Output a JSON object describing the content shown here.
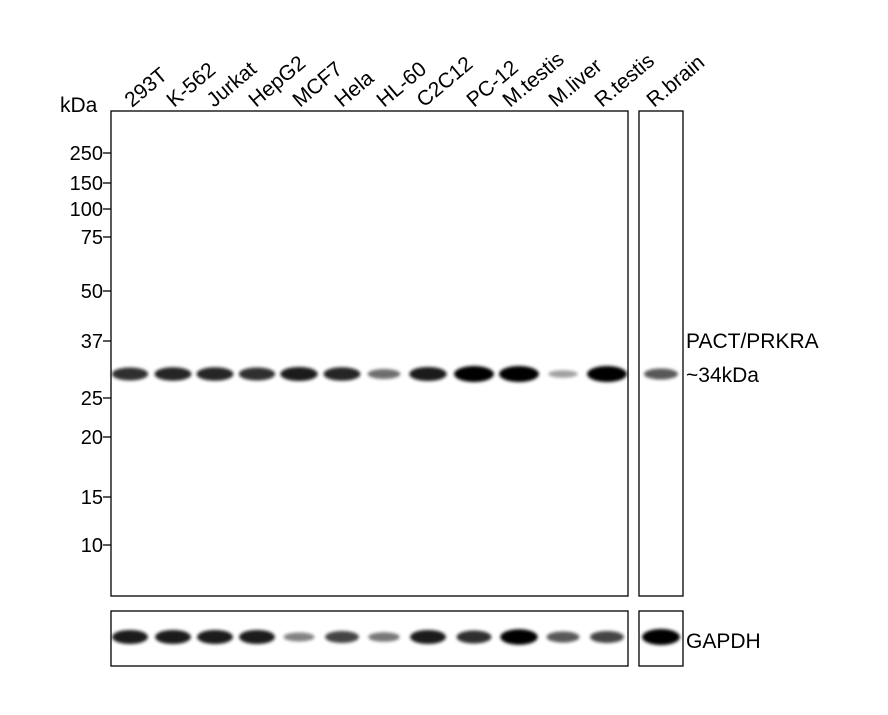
{
  "unit_label": "kDa",
  "lanes": [
    "293T",
    "K-562",
    "Jurkat",
    "HepG2",
    "MCF7",
    "Hela",
    "HL-60",
    "C2C12",
    "PC-12",
    "M.testis",
    "M.liver",
    "R.testis",
    "R.brain"
  ],
  "markers": [
    "250",
    "150",
    "100",
    "75",
    "50",
    "37",
    "25",
    "20",
    "15",
    "10"
  ],
  "target_label": "PACT/PRKRA",
  "target_size": "~34kDa",
  "loading_control_label": "GAPDH",
  "band_intensity": {
    "target": [
      0.7,
      0.75,
      0.75,
      0.7,
      0.8,
      0.75,
      0.4,
      0.8,
      1.0,
      1.0,
      0.15,
      1.0,
      0.5
    ],
    "loading_control": [
      0.8,
      0.8,
      0.8,
      0.8,
      0.3,
      0.6,
      0.35,
      0.8,
      0.7,
      0.95,
      0.5,
      0.6,
      1.0
    ]
  }
}
